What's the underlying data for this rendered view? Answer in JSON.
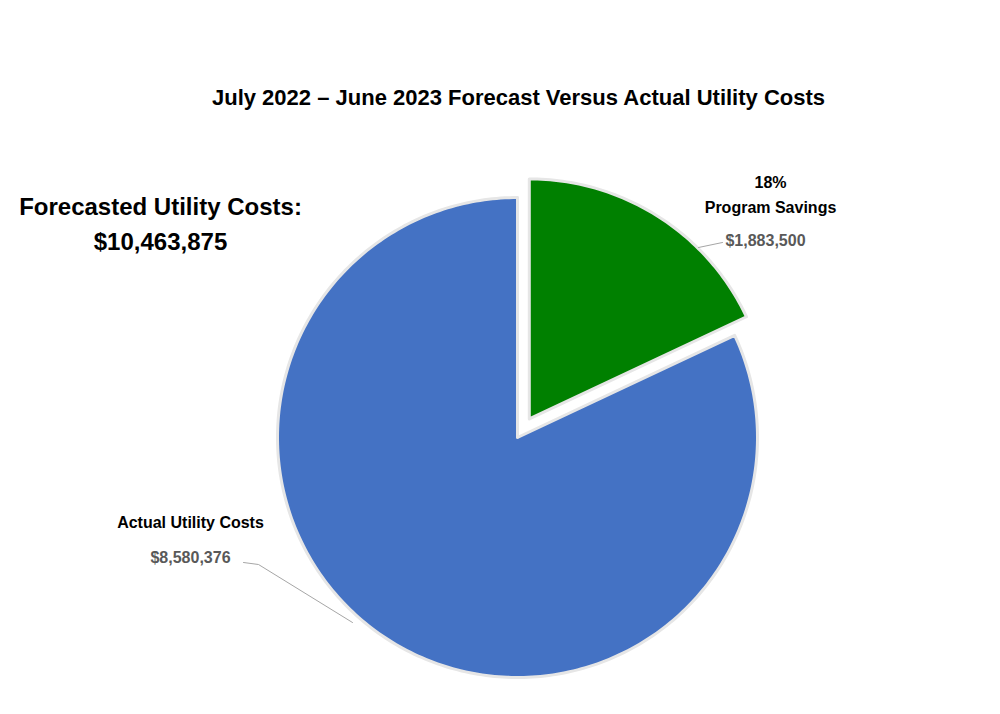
{
  "chart_data": {
    "type": "pie",
    "title": "July 2022 – June 2023 Forecast Versus Actual Utility Costs",
    "categories": [
      "Program Savings",
      "Actual Utility Costs"
    ],
    "values": [
      1883500,
      8580376
    ],
    "value_labels": [
      "$1,883,500",
      "$8,580,376"
    ],
    "colors": [
      "#008000",
      "#4472c4"
    ],
    "percents": [
      18,
      null
    ],
    "percent_labels": [
      "18%",
      null
    ],
    "total": 10463875,
    "total_label": "Forecasted Utility Costs:",
    "total_value_label": "$10,463,875",
    "data_labels": true
  }
}
